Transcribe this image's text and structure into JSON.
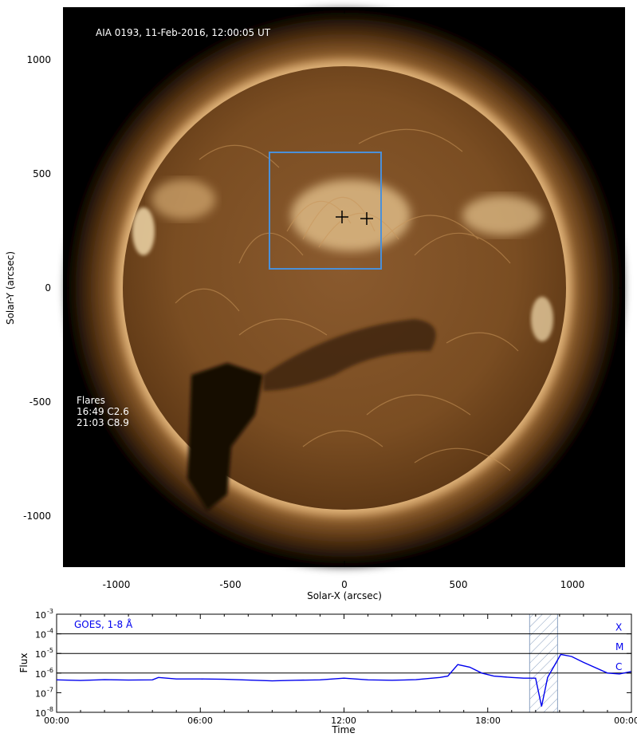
{
  "image_title": "AIA 0193, 11-Feb-2016, 12:00:05 UT",
  "flares": {
    "heading": "Flares",
    "items": [
      "16:49 C2.6",
      "21:03 C8.9"
    ]
  },
  "solar_image": {
    "xlabel": "Solar-X (arcsec)",
    "ylabel": "Solar-Y (arcsec)",
    "x_ticks": [
      "-1000",
      "-500",
      "0",
      "500",
      "1000"
    ],
    "y_ticks": [
      "1000",
      "500",
      "0",
      "-500",
      "-1000"
    ],
    "box_color": "#4a90d9"
  },
  "chart_data": {
    "type": "line",
    "title": "",
    "series": [
      {
        "name": "GOES, 1-8 Å",
        "color": "#0000ee"
      }
    ],
    "xlabel": "Time",
    "ylabel": "Flux",
    "x_ticks": [
      "00:00",
      "06:00",
      "12:00",
      "18:00",
      "00:00"
    ],
    "y_ticks": [
      "10",
      "10",
      "10",
      "10",
      "10",
      "10"
    ],
    "y_tick_exponents": [
      "-3",
      "-4",
      "-5",
      "-6",
      "-7",
      "-8"
    ],
    "ylim": [
      "1e-8",
      "1e-3"
    ],
    "y_scale": "log",
    "class_labels": [
      "X",
      "M",
      "C"
    ],
    "points": [
      [
        "00:00",
        4.5e-07
      ],
      [
        "01:00",
        4.2e-07
      ],
      [
        "02:00",
        4.6e-07
      ],
      [
        "03:00",
        4.4e-07
      ],
      [
        "04:00",
        4.5e-07
      ],
      [
        "04:15",
        6e-07
      ],
      [
        "05:00",
        5e-07
      ],
      [
        "06:00",
        5e-07
      ],
      [
        "07:00",
        4.8e-07
      ],
      [
        "08:00",
        4.4e-07
      ],
      [
        "09:00",
        4e-07
      ],
      [
        "10:00",
        4.3e-07
      ],
      [
        "11:00",
        4.5e-07
      ],
      [
        "12:00",
        5.5e-07
      ],
      [
        "13:00",
        4.5e-07
      ],
      [
        "14:00",
        4.3e-07
      ],
      [
        "15:00",
        4.6e-07
      ],
      [
        "16:00",
        6e-07
      ],
      [
        "16:20",
        7e-07
      ],
      [
        "16:45",
        2.7e-06
      ],
      [
        "17:15",
        2e-06
      ],
      [
        "17:45",
        1e-06
      ],
      [
        "18:15",
        7e-07
      ],
      [
        "19:00",
        6e-07
      ],
      [
        "19:30",
        5.5e-07
      ],
      [
        "20:00",
        5.5e-07
      ],
      [
        "20:15",
        2e-08
      ],
      [
        "20:30",
        6e-07
      ],
      [
        "21:03",
        8.9e-06
      ],
      [
        "21:30",
        7e-06
      ],
      [
        "22:00",
        3.5e-06
      ],
      [
        "23:00",
        1e-06
      ],
      [
        "23:30",
        9e-07
      ],
      [
        "23:59",
        1.2e-06
      ]
    ],
    "highlight_range": [
      "19:45",
      "20:55"
    ],
    "legend_placement": "top-left"
  }
}
